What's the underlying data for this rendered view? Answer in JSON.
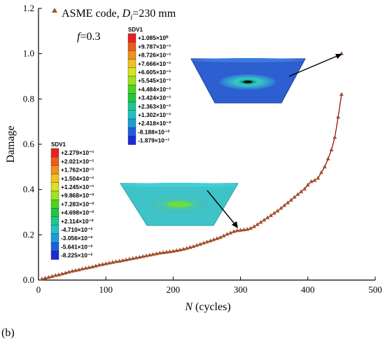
{
  "panel_label": "(b)",
  "chart_data": {
    "type": "scatter",
    "title": "",
    "xlabel_italic": "N",
    "xlabel_rest": " (cycles)",
    "ylabel": "Damage",
    "xlim": [
      0,
      500
    ],
    "ylim": [
      0,
      1.2
    ],
    "x_ticks": [
      "0",
      "100",
      "200",
      "300",
      "400",
      "500"
    ],
    "y_ticks": [
      "0.0",
      "0.2",
      "0.4",
      "0.6",
      "0.8",
      "1.0",
      "1.2"
    ],
    "grid": false,
    "legend": {
      "position": "top-left",
      "prefix": "ASME code, ",
      "var": "D",
      "sub": "i",
      "suffix": "=230 mm"
    },
    "note_var": "f",
    "note_value": "=0.3",
    "marker_color": "#a0522d",
    "line_color": "#8b0000",
    "series": [
      {
        "name": "ASME code, Di=230 mm",
        "x": [
          5,
          10,
          15,
          20,
          25,
          30,
          35,
          40,
          45,
          50,
          55,
          60,
          65,
          70,
          75,
          80,
          85,
          90,
          95,
          100,
          105,
          110,
          115,
          120,
          125,
          130,
          135,
          140,
          145,
          150,
          155,
          160,
          165,
          170,
          175,
          180,
          185,
          190,
          195,
          200,
          205,
          210,
          215,
          220,
          225,
          230,
          235,
          240,
          245,
          250,
          255,
          260,
          265,
          270,
          275,
          280,
          285,
          290,
          295,
          300,
          305,
          310,
          315,
          320,
          325,
          330,
          335,
          340,
          345,
          350,
          355,
          360,
          365,
          370,
          375,
          380,
          385,
          390,
          395,
          400,
          405,
          410,
          415,
          420,
          425,
          430,
          435,
          440,
          445,
          450
        ],
        "y": [
          0.004,
          0.008,
          0.012,
          0.016,
          0.02,
          0.023,
          0.027,
          0.031,
          0.035,
          0.039,
          0.042,
          0.045,
          0.049,
          0.052,
          0.055,
          0.058,
          0.062,
          0.066,
          0.069,
          0.072,
          0.075,
          0.078,
          0.081,
          0.083,
          0.086,
          0.089,
          0.092,
          0.095,
          0.098,
          0.101,
          0.104,
          0.107,
          0.11,
          0.113,
          0.116,
          0.119,
          0.121,
          0.123,
          0.125,
          0.127,
          0.13,
          0.133,
          0.136,
          0.14,
          0.144,
          0.148,
          0.153,
          0.158,
          0.163,
          0.168,
          0.173,
          0.178,
          0.183,
          0.188,
          0.195,
          0.202,
          0.208,
          0.214,
          0.218,
          0.22,
          0.222,
          0.224,
          0.228,
          0.236,
          0.245,
          0.255,
          0.265,
          0.275,
          0.285,
          0.295,
          0.305,
          0.317,
          0.329,
          0.341,
          0.353,
          0.366,
          0.378,
          0.39,
          0.402,
          0.42,
          0.435,
          0.44,
          0.45,
          0.475,
          0.5,
          0.535,
          0.575,
          0.63,
          0.72,
          0.82
        ]
      }
    ],
    "extra_points": [
      {
        "x": 450,
        "y": 1.0
      }
    ],
    "colorbars": [
      {
        "title": "SDV1",
        "values": [
          "+1.085×10⁰",
          "+9.787×10⁻¹",
          "+8.726×10⁻¹",
          "+7.666×10⁻¹",
          "+6.605×10⁻¹",
          "+5.545×10⁻¹",
          "+4.484×10⁻¹",
          "+3.424×10⁻¹",
          "+2.363×10⁻¹",
          "+1.302×10⁻¹",
          "+2.418×10⁻²",
          "-8.188×10⁻²",
          "-1.879×10⁻¹"
        ]
      },
      {
        "title": "SDV1",
        "values": [
          "+2.279×10⁻¹",
          "+2.021×10⁻¹",
          "+1.762×10⁻¹",
          "+1.504×10⁻¹",
          "+1.245×10⁻¹",
          "+9.868×10⁻²",
          "+7.283×10⁻²",
          "+4.698×10⁻²",
          "+2.114×10⁻²",
          "-4.710×10⁻³",
          "-3.056×10⁻²",
          "-5.641×10⁻²",
          "-8.225×10⁻²"
        ]
      }
    ],
    "colorbar_colors": [
      "#e8201f",
      "#f05a1c",
      "#f6901a",
      "#f2c21c",
      "#d8e21f",
      "#9ee31e",
      "#4fd41c",
      "#20c840",
      "#1dc88e",
      "#1ec2c6",
      "#1d9bd8",
      "#1b5fe0",
      "#1c2ad8"
    ],
    "fea_colors": {
      "base": "#2566d0",
      "mid": "#34c7d3",
      "hot": "#4fe050",
      "core": "#111111"
    }
  }
}
